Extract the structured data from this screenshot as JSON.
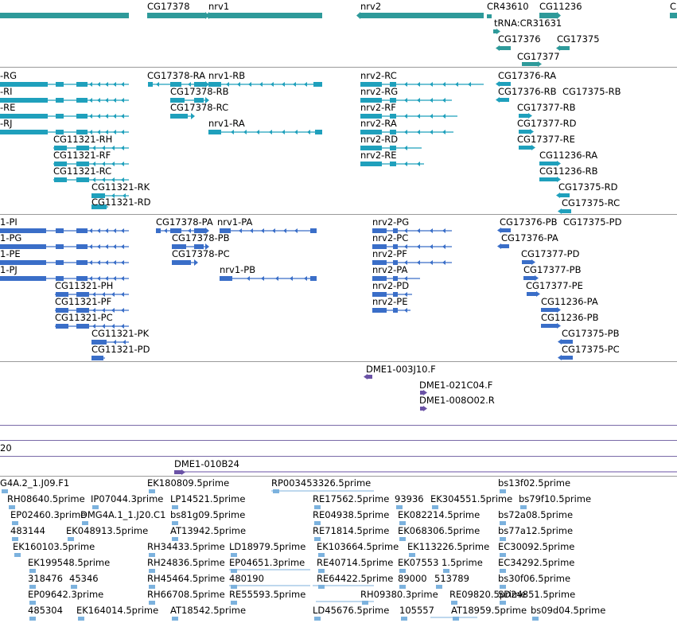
{
  "colors": {
    "gene": "#2e9a9a",
    "mrna": "#1fa0bc",
    "protein": "#3a6ec8",
    "clone": "#6a52a6",
    "est": "#7cb2de",
    "separator": "#9a9a9a"
  },
  "tracks": {
    "genes": {
      "items": [
        {
          "label": "CG17378"
        },
        {
          "label": "nrv1"
        },
        {
          "label": "nrv2"
        },
        {
          "label": "CR43610"
        },
        {
          "label": "CG11236"
        },
        {
          "label": "C"
        },
        {
          "label": "tRNA:CR31631"
        },
        {
          "label": "CG17376"
        },
        {
          "label": "CG17375"
        },
        {
          "label": "CG17377"
        }
      ]
    },
    "transcripts": {
      "items": [
        {
          "label": "-RG"
        },
        {
          "label": "-RI"
        },
        {
          "label": "-RE"
        },
        {
          "label": "-RJ"
        },
        {
          "label": "CG17378-RA"
        },
        {
          "label": "nrv1-RB"
        },
        {
          "label": "CG17378-RB"
        },
        {
          "label": "CG17378-RC"
        },
        {
          "label": "nrv1-RA"
        },
        {
          "label": "CG11321-RH"
        },
        {
          "label": "CG11321-RF"
        },
        {
          "label": "CG11321-RC"
        },
        {
          "label": "CG11321-RK"
        },
        {
          "label": "CG11321-RD"
        },
        {
          "label": "nrv2-RC"
        },
        {
          "label": "nrv2-RG"
        },
        {
          "label": "nrv2-RF"
        },
        {
          "label": "nrv2-RA"
        },
        {
          "label": "nrv2-RD"
        },
        {
          "label": "nrv2-RE"
        },
        {
          "label": "CG17376-RA"
        },
        {
          "label": "CG17376-RB"
        },
        {
          "label": "CG17375-RB"
        },
        {
          "label": "CG17377-RB"
        },
        {
          "label": "CG17377-RD"
        },
        {
          "label": "CG17377-RE"
        },
        {
          "label": "CG11236-RA"
        },
        {
          "label": "CG11236-RB"
        },
        {
          "label": "CG17375-RD"
        },
        {
          "label": "CG17375-RC"
        }
      ]
    },
    "proteins": {
      "items": [
        {
          "label": "1-PI"
        },
        {
          "label": "1-PG"
        },
        {
          "label": "1-PE"
        },
        {
          "label": "1-PJ"
        },
        {
          "label": "CG17378-PA"
        },
        {
          "label": "nrv1-PA"
        },
        {
          "label": "CG17378-PB"
        },
        {
          "label": "CG17378-PC"
        },
        {
          "label": "nrv1-PB"
        },
        {
          "label": "CG11321-PH"
        },
        {
          "label": "CG11321-PF"
        },
        {
          "label": "CG11321-PC"
        },
        {
          "label": "CG11321-PK"
        },
        {
          "label": "CG11321-PD"
        },
        {
          "label": "nrv2-PG"
        },
        {
          "label": "nrv2-PC"
        },
        {
          "label": "nrv2-PF"
        },
        {
          "label": "nrv2-PA"
        },
        {
          "label": "nrv2-PD"
        },
        {
          "label": "nrv2-PE"
        },
        {
          "label": "CG17376-PB"
        },
        {
          "label": "CG17375-PD"
        },
        {
          "label": "CG17376-PA"
        },
        {
          "label": "CG17377-PD"
        },
        {
          "label": "CG17377-PB"
        },
        {
          "label": "CG17377-PE"
        },
        {
          "label": "CG11236-PA"
        },
        {
          "label": "CG11236-PB"
        },
        {
          "label": "CG17375-PB"
        },
        {
          "label": "CG17375-PC"
        }
      ]
    },
    "clones": {
      "items": [
        {
          "label": "DME1-003J10.F"
        },
        {
          "label": "DME1-021C04.F"
        },
        {
          "label": "DME1-008O02.R"
        }
      ]
    },
    "bac": {
      "items": [
        {
          "label": "20"
        }
      ]
    },
    "clone2": {
      "items": [
        {
          "label": "DME1-010B24"
        }
      ]
    },
    "ests": {
      "items": [
        {
          "label": "G4A.2_1.J09.F1"
        },
        {
          "label": "EK180809.5prime"
        },
        {
          "label": "RP003453326.5prime"
        },
        {
          "label": "bs13f02.5prime"
        },
        {
          "label": "RH08640.5prime"
        },
        {
          "label": "IP07044.3prime"
        },
        {
          "label": "LP14521.5prime"
        },
        {
          "label": "RE17562.5prime"
        },
        {
          "label": "93936"
        },
        {
          "label": "EK304551.5prime"
        },
        {
          "label": "bs79f10.5prime"
        },
        {
          "label": "EP02460.3prime"
        },
        {
          "label": "DMG4A.1_1.J20.C1"
        },
        {
          "label": "bs81g09.5prime"
        },
        {
          "label": "RE04938.5prime"
        },
        {
          "label": "EK082214.5prime"
        },
        {
          "label": "bs72a08.5prime"
        },
        {
          "label": "483144"
        },
        {
          "label": "EK048913.5prime"
        },
        {
          "label": "AT13942.5prime"
        },
        {
          "label": "RE71814.5prime"
        },
        {
          "label": "EK068306.5prime"
        },
        {
          "label": "bs77a12.5prime"
        },
        {
          "label": "EK160103.5prime"
        },
        {
          "label": "RH34433.5prime"
        },
        {
          "label": "LD18979.5prime"
        },
        {
          "label": "EK103664.5prime"
        },
        {
          "label": "EK113226.5prime"
        },
        {
          "label": "EC30092.5prime"
        },
        {
          "label": "EK199548.5prime"
        },
        {
          "label": "RH24836.5prime"
        },
        {
          "label": "EP04651.3prime"
        },
        {
          "label": "RE40714.5prime"
        },
        {
          "label": "EK07553"
        },
        {
          "label": "1.5prime"
        },
        {
          "label": "EC34292.5prime"
        },
        {
          "label": "318476"
        },
        {
          "label": "45346"
        },
        {
          "label": "RH45464.5prime"
        },
        {
          "label": "480190"
        },
        {
          "label": "RE64422.5prime"
        },
        {
          "label": "89000"
        },
        {
          "label": "513789"
        },
        {
          "label": "bs30f06.5prime"
        },
        {
          "label": "EP09642.3prime"
        },
        {
          "label": "RH66708.5prime"
        },
        {
          "label": "RE55593.5prime"
        },
        {
          "label": "RH09380.3prime"
        },
        {
          "label": "RE09820.5prime"
        },
        {
          "label": "SD24851.5prime"
        },
        {
          "label": "485304"
        },
        {
          "label": "EK164014.5prime"
        },
        {
          "label": "AT18542.5prime"
        },
        {
          "label": "LD45676.5prime"
        },
        {
          "label": "105557"
        },
        {
          "label": "AT18959.5prime"
        },
        {
          "label": "bs09d04.5prime"
        }
      ]
    }
  }
}
